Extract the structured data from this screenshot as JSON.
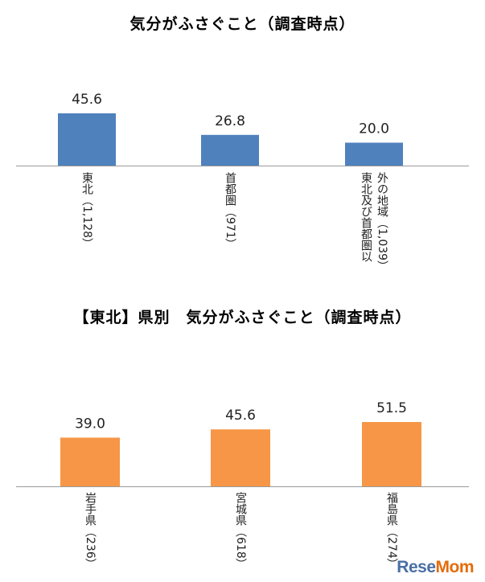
{
  "chart_data": [
    {
      "type": "bar",
      "title": "気分がふさぐこと（調査時点）",
      "categories": [
        "東北（1,128）",
        "首都圏（971）",
        "東北及び首都圏以外の地域（1,039）"
      ],
      "category_lines": [
        [
          "東北（1,128）"
        ],
        [
          "首都圏（971）"
        ],
        [
          "東北及び首都圏以",
          "外の地域（1,039）"
        ]
      ],
      "values": [
        45.6,
        26.8,
        20.0
      ],
      "value_labels": [
        "45.6",
        "26.8",
        "20.0"
      ],
      "color": "#4f81bd",
      "ylim": [
        0,
        60
      ],
      "grid": false,
      "legend": "none"
    },
    {
      "type": "bar",
      "title": "【東北】県別　気分がふさぐこと（調査時点）",
      "categories": [
        "岩手県（236）",
        "宮城県（618）",
        "福島県（274）"
      ],
      "category_lines": [
        [
          "岩手県（236）"
        ],
        [
          "宮城県（618）"
        ],
        [
          "福島県（274）"
        ]
      ],
      "values": [
        39.0,
        45.6,
        51.5
      ],
      "value_labels": [
        "39.0",
        "45.6",
        "51.5"
      ],
      "color": "#f79646",
      "ylim": [
        0,
        70
      ],
      "grid": false,
      "legend": "none"
    }
  ],
  "watermark": {
    "text_main": "Rese",
    "text_accent": "Mom"
  }
}
